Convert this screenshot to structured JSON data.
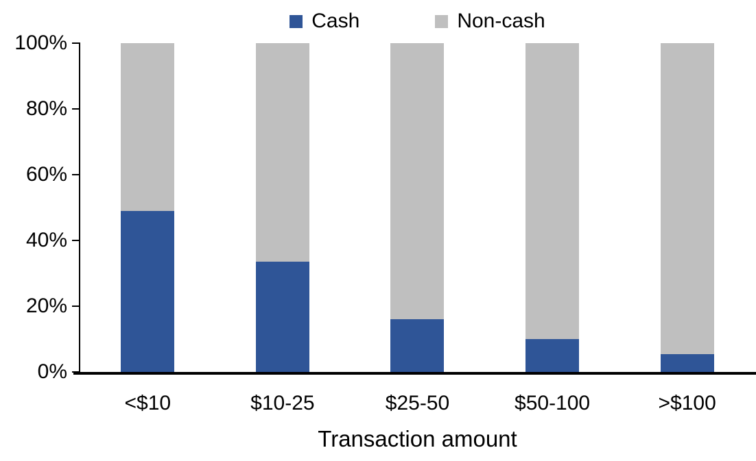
{
  "chart_data": {
    "type": "bar",
    "variant": "stacked-100-percent-column",
    "title": "",
    "xlabel": "Transaction amount",
    "ylabel": "",
    "categories": [
      "<$10",
      "$10-25",
      "$25-50",
      "$50-100",
      ">$100"
    ],
    "series": [
      {
        "name": "Cash",
        "color": "#2F5597",
        "values": [
          49,
          33.5,
          16,
          10,
          5.5
        ]
      },
      {
        "name": "Non-cash",
        "color": "#BFBFBF",
        "values": [
          51,
          66.5,
          84,
          90,
          94.5
        ]
      }
    ],
    "ylim": [
      0,
      100
    ],
    "yticks": [
      "100%",
      "80%",
      "60%",
      "40%",
      "20%",
      "0%"
    ],
    "ytick_values": [
      100,
      80,
      60,
      40,
      20,
      0
    ],
    "grid": false,
    "legend_position": "top-center",
    "axis_color": "#000000",
    "background_color": "#FFFFFF"
  }
}
